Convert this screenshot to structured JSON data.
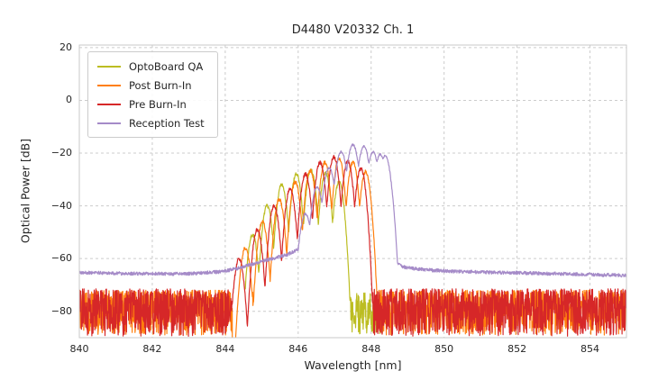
{
  "chart_data": {
    "type": "line",
    "title": "D4480 V20332 Ch. 1",
    "xlabel": "Wavelength [nm]",
    "ylabel": "Optical Power [dB]",
    "xlim": [
      840,
      855
    ],
    "ylim": [
      -90,
      21
    ],
    "xticks": [
      840,
      842,
      844,
      846,
      848,
      850,
      852,
      854
    ],
    "xtick_labels": [
      "840",
      "842",
      "844",
      "846",
      "848",
      "850",
      "852",
      "854"
    ],
    "yticks": [
      20,
      0,
      -20,
      -40,
      -60,
      -80
    ],
    "ytick_labels": [
      "20",
      "0",
      "−20",
      "−40",
      "−60",
      "−80"
    ],
    "grid": true,
    "legend_position": "upper-left",
    "series": [
      {
        "name": "OptoBoard QA",
        "color": "#bcbd22",
        "seed": 7,
        "xrange": [
          844.55,
          848.32
        ],
        "peaks": [
          [
            844.75,
            -51
          ],
          [
            845.15,
            -40
          ],
          [
            845.55,
            -32
          ],
          [
            845.95,
            -28
          ],
          [
            846.35,
            -26.5
          ],
          [
            846.75,
            -27.5
          ],
          [
            847.12,
            -31
          ]
        ],
        "peak_halfwidth": 0.2,
        "valley_drop": 20,
        "line_noise": 1.4,
        "noise_regions": [
          [
            847.35,
            848.32
          ]
        ],
        "noise_top": -73,
        "noise_bottom": -89
      },
      {
        "name": "Post Burn-In",
        "color": "#ff7f0e",
        "seed": 13,
        "peaks": [
          [
            844.55,
            -56
          ],
          [
            845.02,
            -46
          ],
          [
            845.48,
            -37.5
          ],
          [
            845.92,
            -31
          ],
          [
            846.33,
            -26.5
          ],
          [
            846.73,
            -23.5
          ],
          [
            847.12,
            -22
          ],
          [
            847.5,
            -23.5
          ],
          [
            847.85,
            -27
          ]
        ],
        "peak_halfwidth": 0.2,
        "valley_drop": 20,
        "line_noise": 1.4,
        "noise_regions": [
          [
            840,
            844.2
          ],
          [
            844.66,
            847.45
          ],
          [
            848.06,
            855
          ]
        ],
        "noise_top": -72,
        "noise_bottom": -89
      },
      {
        "name": "Pre Burn-In",
        "color": "#d62728",
        "seed": 3,
        "peaks": [
          [
            844.38,
            -60
          ],
          [
            844.88,
            -49
          ],
          [
            845.34,
            -40
          ],
          [
            845.78,
            -33.5
          ],
          [
            846.2,
            -28
          ],
          [
            846.6,
            -23.5
          ],
          [
            846.98,
            -21.5
          ],
          [
            847.36,
            -23
          ],
          [
            847.72,
            -26
          ]
        ],
        "peak_halfwidth": 0.2,
        "valley_drop": 20,
        "line_noise": 1.4,
        "noise_regions": [
          [
            840,
            844.22
          ],
          [
            844.68,
            847.42
          ],
          [
            848.02,
            855
          ]
        ],
        "noise_top": -71.5,
        "noise_bottom": -89.5
      },
      {
        "name": "Reception Test",
        "color": "#a58bc8",
        "seed": 21,
        "base": [
          [
            840,
            -65.3
          ],
          [
            841.5,
            -65.7
          ],
          [
            843,
            -65.8
          ],
          [
            843.9,
            -65
          ],
          [
            844.4,
            -63.5
          ],
          [
            844.9,
            -61.5
          ],
          [
            845.3,
            -60
          ],
          [
            845.7,
            -58.5
          ],
          [
            846.0,
            -56.5
          ],
          [
            846.2,
            -53
          ],
          [
            846.35,
            -50
          ],
          [
            848.42,
            -50
          ],
          [
            848.5,
            -57
          ],
          [
            848.62,
            -61.5
          ],
          [
            848.9,
            -63.2
          ],
          [
            849.5,
            -64.3
          ],
          [
            850.5,
            -65
          ],
          [
            852,
            -65.4
          ],
          [
            853.5,
            -65.9
          ],
          [
            855,
            -66.4
          ]
        ],
        "base_noise": 1.3,
        "peaks": [
          [
            846.2,
            -43
          ],
          [
            846.52,
            -33
          ],
          [
            846.85,
            -25.5
          ],
          [
            847.18,
            -19.5
          ],
          [
            847.5,
            -16.8
          ],
          [
            847.8,
            -17.5
          ],
          [
            848.05,
            -19.5
          ],
          [
            848.25,
            -20.5
          ],
          [
            848.38,
            -21
          ]
        ],
        "peak_halfwidth": 0.17,
        "valley_drop": 10,
        "line_noise": 0.8
      }
    ]
  }
}
